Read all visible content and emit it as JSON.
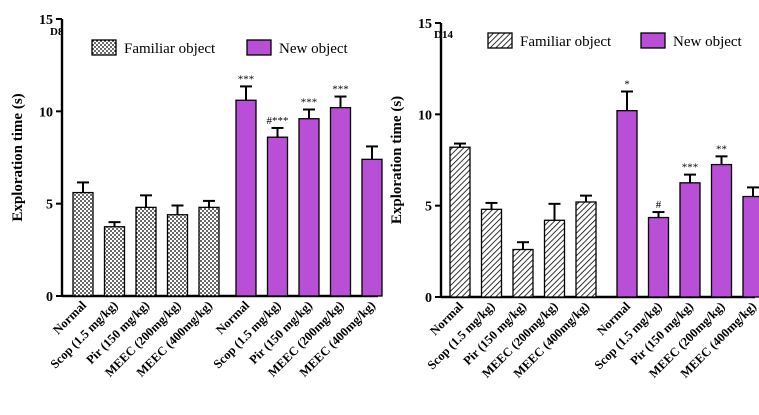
{
  "colors": {
    "new_object": "#b94fd6",
    "familiar_fill": "#ffffff",
    "ink": "#000000"
  },
  "chart_data": [
    {
      "type": "bar",
      "panel_tag": "D8",
      "ylabel": "Exploration time (s)",
      "xlabel": "",
      "ylim": [
        0,
        15
      ],
      "yticks": [
        0,
        5,
        10,
        15
      ],
      "grid": false,
      "legend_position": "top",
      "familiar_pattern": "dots",
      "groups": [
        {
          "name": "Familiar object",
          "categories": [
            "Normal",
            "Scop (1.5 mg/kg)",
            "Pir (150 mg/kg)",
            "MEEC (200mg/kg)",
            "MEEC (400mg/kg)"
          ],
          "values": [
            5.6,
            3.75,
            4.8,
            4.4,
            4.8
          ],
          "errors": [
            0.55,
            0.25,
            0.65,
            0.5,
            0.35
          ],
          "annotations": [
            "",
            "",
            "",
            "",
            ""
          ]
        },
        {
          "name": "New object",
          "categories": [
            "Normal",
            "Scop (1.5 mg/kg)",
            "Pir (150 mg/kg)",
            "MEEC (200mg/kg)",
            "MEEC (400mg/kg)"
          ],
          "values": [
            10.6,
            8.6,
            9.6,
            10.2,
            7.4
          ],
          "errors": [
            0.75,
            0.5,
            0.5,
            0.6,
            0.7
          ],
          "annotations": [
            "***",
            "#***",
            "***",
            "***",
            ""
          ]
        }
      ]
    },
    {
      "type": "bar",
      "panel_tag": "D14",
      "ylabel": "Exploration time (s)",
      "xlabel": "",
      "ylim": [
        0,
        15
      ],
      "yticks": [
        0,
        5,
        10,
        15
      ],
      "grid": false,
      "legend_position": "top",
      "familiar_pattern": "diagonal-hatch",
      "groups": [
        {
          "name": "Familiar object",
          "categories": [
            "Normal",
            "Scop (1.5 mg/kg)",
            "Pir (150 mg/kg)",
            "MEEC (200mg/kg)",
            "MEEC (400mg/kg)"
          ],
          "values": [
            8.2,
            4.8,
            2.6,
            4.2,
            5.2
          ],
          "errors": [
            0.2,
            0.35,
            0.4,
            0.9,
            0.35
          ],
          "annotations": [
            "",
            "",
            "",
            "",
            ""
          ]
        },
        {
          "name": "New object",
          "categories": [
            "Normal",
            "Scop (1.5 mg/kg)",
            "Pir (150 mg/kg)",
            "MEEC (200mg/kg)",
            "MEEC (400mg/kg)"
          ],
          "values": [
            10.2,
            4.35,
            6.25,
            7.25,
            5.5
          ],
          "errors": [
            1.05,
            0.3,
            0.45,
            0.45,
            0.5
          ],
          "annotations": [
            "*",
            "#",
            "***",
            "**",
            ""
          ]
        }
      ]
    }
  ]
}
